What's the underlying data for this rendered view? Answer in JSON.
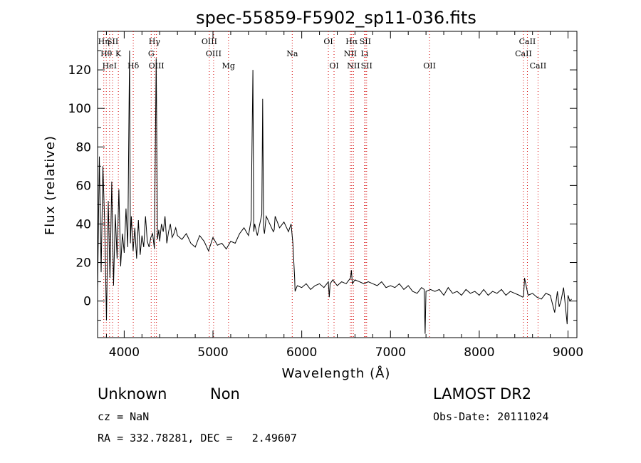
{
  "chart_data": {
    "type": "line",
    "title": "spec-55859-F5902_sp11-036.fits",
    "xlabel": "Wavelength (Å)",
    "ylabel": "Flux (relative)",
    "xlim": [
      3700,
      9100
    ],
    "ylim": [
      -19,
      140
    ],
    "x_ticks": [
      4000,
      5000,
      6000,
      7000,
      8000,
      9000
    ],
    "y_ticks": [
      0,
      20,
      40,
      60,
      80,
      100,
      120
    ],
    "grid": false,
    "line_color": "#000000",
    "marker_color": "#d40000",
    "series": [
      {
        "x": [
          3700,
          3720,
          3740,
          3760,
          3780,
          3800,
          3820,
          3840,
          3860,
          3880,
          3900,
          3920,
          3940,
          3960,
          3980,
          4000,
          4020,
          4040,
          4060,
          4070,
          4080,
          4100,
          4120,
          4140,
          4160,
          4180,
          4200,
          4220,
          4240,
          4260,
          4280,
          4300,
          4320,
          4340,
          4360,
          4375,
          4390,
          4400,
          4420,
          4440,
          4460,
          4480,
          4500,
          4520,
          4540,
          4560,
          4580,
          4600,
          4650,
          4700,
          4750,
          4800,
          4850,
          4900,
          4950,
          5000,
          5050,
          5100,
          5150,
          5200,
          5250,
          5300,
          5350,
          5400,
          5430,
          5450,
          5460,
          5470,
          5500,
          5550,
          5560,
          5570,
          5580,
          5600,
          5650,
          5680,
          5690,
          5700,
          5750,
          5800,
          5850,
          5880,
          5900,
          5920,
          5925,
          5950,
          6000,
          6050,
          6100,
          6150,
          6200,
          6250,
          6300,
          6310,
          6320,
          6350,
          6400,
          6450,
          6500,
          6550,
          6560,
          6570,
          6600,
          6650,
          6700,
          6750,
          6800,
          6850,
          6900,
          6950,
          7000,
          7050,
          7100,
          7150,
          7200,
          7250,
          7300,
          7350,
          7380,
          7390,
          7400,
          7450,
          7500,
          7550,
          7600,
          7650,
          7700,
          7750,
          7800,
          7850,
          7900,
          7950,
          8000,
          8050,
          8100,
          8150,
          8200,
          8250,
          8300,
          8350,
          8400,
          8450,
          8490,
          8500,
          8510,
          8550,
          8600,
          8650,
          8700,
          8750,
          8800,
          8850,
          8880,
          8900,
          8920,
          8950,
          8990,
          9000,
          9020,
          9040
        ],
        "y": [
          5,
          75,
          15,
          70,
          40,
          -10,
          52,
          12,
          62,
          8,
          45,
          22,
          58,
          18,
          35,
          25,
          48,
          28,
          130,
          30,
          44,
          26,
          38,
          22,
          42,
          24,
          34,
          28,
          44,
          31,
          28,
          33,
          35,
          27,
          126,
          32,
          37,
          31,
          40,
          36,
          44,
          30,
          36,
          40,
          33,
          35,
          38,
          34,
          32,
          35,
          30,
          28,
          34,
          31,
          26,
          33,
          29,
          30,
          27,
          31,
          30,
          35,
          38,
          34,
          42,
          120,
          36,
          40,
          34,
          45,
          105,
          38,
          35,
          44,
          39,
          36,
          37,
          44,
          38,
          41,
          36,
          40,
          30,
          12,
          5,
          8,
          7,
          9,
          6,
          8,
          9,
          7,
          10,
          2,
          9,
          11,
          8,
          10,
          9,
          12,
          16,
          9,
          11,
          10,
          9,
          10,
          9,
          8,
          10,
          7,
          8,
          7,
          9,
          6,
          8,
          5,
          4,
          7,
          6,
          -17,
          5,
          6,
          5,
          6,
          3,
          7,
          4,
          5,
          3,
          6,
          4,
          5,
          3,
          6,
          3,
          5,
          4,
          6,
          3,
          5,
          4,
          3,
          2,
          3,
          12,
          3,
          4,
          2,
          1,
          4,
          3,
          -6,
          5,
          -3,
          0,
          7,
          -12,
          3,
          0,
          1
        ]
      }
    ],
    "line_markers": [
      {
        "x": 3770,
        "row1": "Hη"
      },
      {
        "x": 3798,
        "row2": "Hθ"
      },
      {
        "x": 3835,
        "row3": "HeI"
      },
      {
        "x": 3869,
        "row1": "SII"
      },
      {
        "x": 3934,
        "row2": "K"
      },
      {
        "x": 4102,
        "row3": "Hδ"
      },
      {
        "x": 4304,
        "row2": "G"
      },
      {
        "x": 4341,
        "row1": "Hγ"
      },
      {
        "x": 4363,
        "row3": "OIII"
      },
      {
        "x": 4959,
        "row1": "OIII"
      },
      {
        "x": 5007,
        "row2": "OIII"
      },
      {
        "x": 5175,
        "row3": "Mg"
      },
      {
        "x": 5893,
        "row2": "Na"
      },
      {
        "x": 6300,
        "row1": "OI"
      },
      {
        "x": 6364,
        "row3": "OI"
      },
      {
        "x": 6548,
        "row2": "NII"
      },
      {
        "x": 6563,
        "row1": "Hα"
      },
      {
        "x": 6583,
        "row3": "NII"
      },
      {
        "x": 6708,
        "row2": "Li"
      },
      {
        "x": 6716,
        "row1": "SII"
      },
      {
        "x": 6731,
        "row3": "SII"
      },
      {
        "x": 7440,
        "row3": "OII"
      },
      {
        "x": 8498,
        "row2": "CaII"
      },
      {
        "x": 8542,
        "row1": "CaII"
      },
      {
        "x": 8662,
        "row3": "CaII"
      }
    ]
  },
  "footer": {
    "class_label": "Unknown",
    "subclass_label": "Non",
    "survey_label": "LAMOST DR2",
    "cz_text": "cz = NaN",
    "obs_date_text": "Obs-Date: 20111024",
    "coords_text": "RA = 332.78281, DEC =   2.49607"
  }
}
